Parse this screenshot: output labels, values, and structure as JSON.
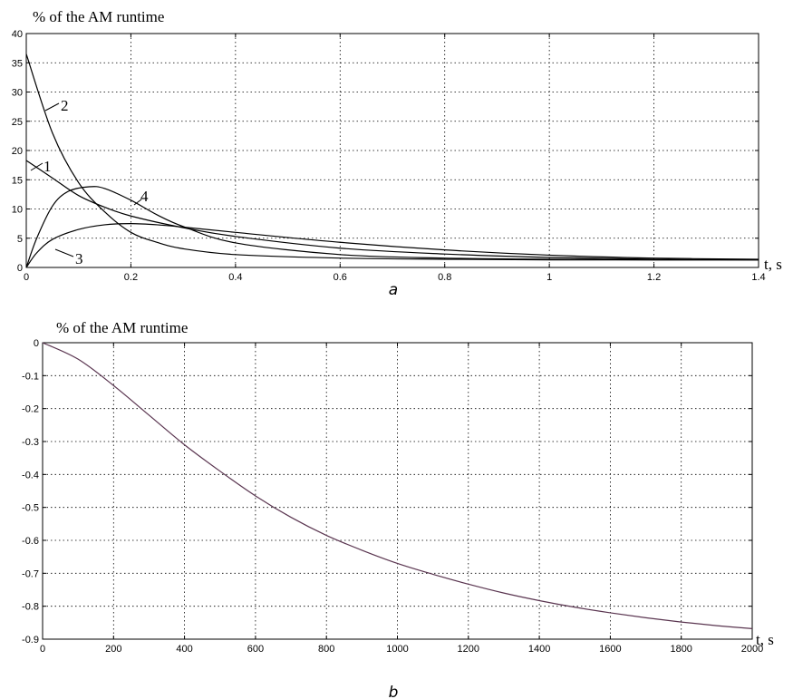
{
  "chart_data": [
    {
      "type": "line",
      "panel_label": "a",
      "ylabel": "% of the AM runtime",
      "xlabel": "t,  s",
      "xlim": [
        0,
        1.4
      ],
      "ylim": [
        0,
        40
      ],
      "xticks": [
        "0",
        "0.2",
        "0.4",
        "0.6",
        "0.8",
        "1",
        "1.2",
        "1.4"
      ],
      "yticks": [
        "0",
        "5",
        "10",
        "15",
        "20",
        "25",
        "30",
        "35",
        "40"
      ],
      "grid": true,
      "line_color": "#000000",
      "series": [
        {
          "name": "1",
          "x": [
            0,
            0.05,
            0.1,
            0.15,
            0.2,
            0.3,
            0.4,
            0.6,
            0.8,
            1.0,
            1.2,
            1.4
          ],
          "y": [
            18.3,
            15.3,
            12.3,
            10.3,
            8.8,
            6.8,
            5.3,
            3.3,
            2.3,
            1.7,
            1.4,
            1.3
          ]
        },
        {
          "name": "2",
          "x": [
            0,
            0.05,
            0.1,
            0.15,
            0.2,
            0.25,
            0.3,
            0.4,
            0.6,
            0.8,
            1.0,
            1.2,
            1.4
          ],
          "y": [
            36.5,
            23.0,
            14.5,
            9.5,
            6.0,
            4.3,
            3.2,
            2.2,
            1.6,
            1.4,
            1.3,
            1.3,
            1.3
          ]
        },
        {
          "name": "3",
          "x": [
            0,
            0.02,
            0.05,
            0.1,
            0.15,
            0.2,
            0.25,
            0.3,
            0.4,
            0.6,
            0.8,
            1.0,
            1.2,
            1.4
          ],
          "y": [
            0,
            2.5,
            4.8,
            6.5,
            7.3,
            7.5,
            7.3,
            6.9,
            6.0,
            4.3,
            3.0,
            2.1,
            1.6,
            1.4
          ]
        },
        {
          "name": "4",
          "x": [
            0,
            0.02,
            0.05,
            0.08,
            0.12,
            0.15,
            0.2,
            0.25,
            0.3,
            0.4,
            0.6,
            0.8,
            1.0,
            1.2,
            1.4
          ],
          "y": [
            0,
            5.0,
            10.5,
            13.0,
            13.8,
            13.5,
            11.5,
            9.0,
            7.0,
            4.2,
            2.2,
            1.6,
            1.4,
            1.3,
            1.3
          ]
        }
      ]
    },
    {
      "type": "line",
      "panel_label": "b",
      "ylabel": "% of the AM runtime",
      "xlabel": "t,  s",
      "xlim": [
        0,
        2000
      ],
      "ylim": [
        -0.9,
        0
      ],
      "xticks": [
        "0",
        "200",
        "400",
        "600",
        "800",
        "1000",
        "1200",
        "1400",
        "1600",
        "1800",
        "2000"
      ],
      "yticks": [
        "0",
        "-0.1",
        "-0.2",
        "-0.3",
        "-0.4",
        "-0.5",
        "-0.6",
        "-0.7",
        "-0.8",
        "-0.9"
      ],
      "grid": true,
      "line_color": "#5a3550",
      "series": [
        {
          "x": [
            0,
            100,
            200,
            300,
            400,
            500,
            600,
            700,
            800,
            900,
            1000,
            1100,
            1200,
            1300,
            1400,
            1500,
            1600,
            1700,
            1800,
            1900,
            2000
          ],
          "y": [
            0,
            -0.05,
            -0.13,
            -0.22,
            -0.31,
            -0.39,
            -0.465,
            -0.53,
            -0.585,
            -0.63,
            -0.67,
            -0.703,
            -0.733,
            -0.76,
            -0.783,
            -0.803,
            -0.82,
            -0.835,
            -0.848,
            -0.859,
            -0.868
          ]
        }
      ]
    }
  ]
}
